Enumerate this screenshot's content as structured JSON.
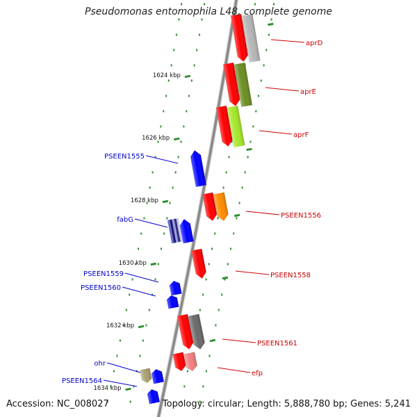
{
  "title": "Pseudomonas entomophila L48, complete genome",
  "footer": {
    "accession": "Accession: NC_008027",
    "topology": "Topology: circular; Length: 5,888,780 bp; Genes: 5,241"
  },
  "colors": {
    "backbone": "#8a8a8a",
    "tick": "#2f8f2f",
    "forward_label": "#cc0000",
    "reverse_label": "#0000cc",
    "red": "#ff0000",
    "blue": "#0000ff",
    "gray": "#b5b5b5",
    "olive": "#6b8e23",
    "lime": "#a6e62a",
    "orange": "#ff8c00",
    "pink": "#f08080",
    "darkgray": "#6a6a6a",
    "tan": "#a8a070",
    "navy": "#1a1a6e"
  },
  "axis": {
    "ticks": [
      "1624 kbp",
      "1626 kbp",
      "1628 kbp",
      "1630 kbp",
      "1632 kbp",
      "1634 kbp"
    ]
  },
  "genes": [
    {
      "name": "aprD",
      "strand": "forward",
      "companion": "gray"
    },
    {
      "name": "aprE",
      "strand": "forward",
      "companion": "olive"
    },
    {
      "name": "aprF",
      "strand": "forward",
      "companion": "lime"
    },
    {
      "name": "PSEEN1555",
      "strand": "reverse",
      "companion": ""
    },
    {
      "name": "PSEEN1556",
      "strand": "forward",
      "companion": "orange"
    },
    {
      "name": "fabG",
      "strand": "reverse",
      "companion": "navy"
    },
    {
      "name": "PSEEN1558",
      "strand": "forward",
      "companion": ""
    },
    {
      "name": "PSEEN1559",
      "strand": "reverse",
      "companion": ""
    },
    {
      "name": "PSEEN1560",
      "strand": "reverse",
      "companion": ""
    },
    {
      "name": "PSEEN1561",
      "strand": "forward",
      "companion": "darkgray"
    },
    {
      "name": "efp",
      "strand": "forward",
      "companion": "pink"
    },
    {
      "name": "ohr",
      "strand": "reverse",
      "companion": "tan"
    },
    {
      "name": "PSEEN1564",
      "strand": "reverse",
      "companion": ""
    }
  ]
}
